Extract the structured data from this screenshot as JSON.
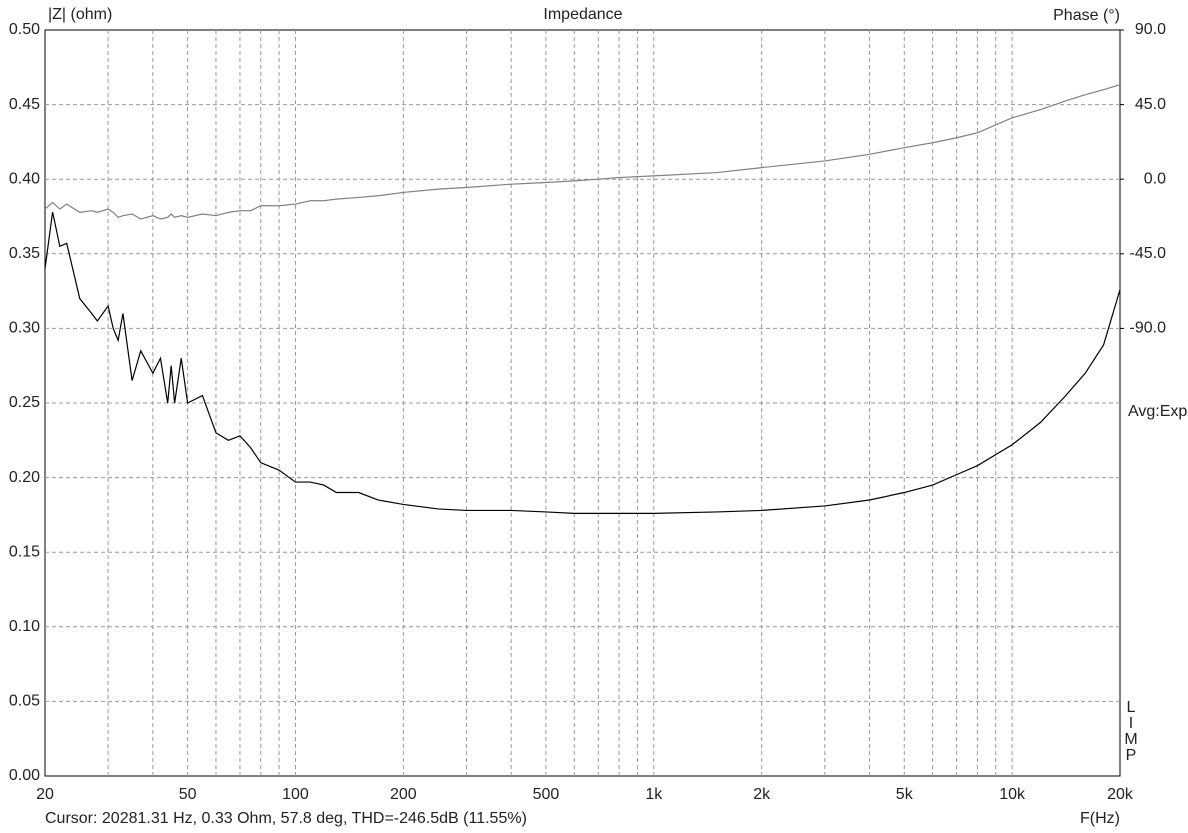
{
  "chart_data": {
    "type": "line",
    "title": "Impedance",
    "y_label": "|Z| (ohm)",
    "y2_label": "Phase (°)",
    "x_label": "F(Hz)",
    "mode_label": "Avg:Exp",
    "program_label": "LIMP",
    "cursor": "Cursor: 20281.31 Hz, 0.33 Ohm, 57.8 deg, THD=-246.5dB (11.55%)",
    "log_x": true,
    "grid": true,
    "xlim": [
      20,
      20000
    ],
    "xticks": [
      20,
      50,
      100,
      200,
      500,
      {
        "value": 1000,
        "label": "1k"
      },
      {
        "value": 2000,
        "label": "2k"
      },
      {
        "value": 5000,
        "label": "5k"
      },
      {
        "value": 10000,
        "label": "10k"
      },
      {
        "value": 20000,
        "label": "20k"
      }
    ],
    "xminorticks": [
      30,
      40,
      60,
      70,
      80,
      90,
      300,
      400,
      600,
      700,
      800,
      900,
      3000,
      4000,
      6000,
      7000,
      8000,
      9000
    ],
    "ylim": [
      0,
      0.5
    ],
    "yticks": [
      {
        "value": 0,
        "label": "0.00"
      },
      {
        "value": 0.05,
        "label": "0.05"
      },
      {
        "value": 0.1,
        "label": "0.10"
      },
      {
        "value": 0.15,
        "label": "0.15"
      },
      {
        "value": 0.2,
        "label": "0.20"
      },
      {
        "value": 0.25,
        "label": "0.25"
      },
      {
        "value": 0.3,
        "label": "0.30"
      },
      {
        "value": 0.35,
        "label": "0.35"
      },
      {
        "value": 0.4,
        "label": "0.40"
      },
      {
        "value": 0.45,
        "label": "0.45"
      },
      {
        "value": 0.5,
        "label": "0.50"
      }
    ],
    "y2lim": [
      -360,
      90
    ],
    "y2ticks": [
      {
        "value": 90,
        "label": "90.0"
      },
      {
        "value": 45,
        "label": "45.0"
      },
      {
        "value": 0,
        "label": "0.0"
      },
      {
        "value": -45,
        "label": "-45.0"
      },
      {
        "value": -90,
        "label": "-90.0"
      }
    ],
    "x": [
      20,
      21,
      22,
      23,
      25,
      27,
      28,
      30,
      31,
      32,
      33,
      35,
      37,
      40,
      42,
      44,
      45,
      46,
      48,
      50,
      55,
      60,
      65,
      70,
      75,
      80,
      90,
      100,
      110,
      120,
      130,
      150,
      170,
      200,
      250,
      300,
      400,
      500,
      600,
      700,
      800,
      1000,
      1500,
      2000,
      3000,
      4000,
      5000,
      6000,
      7000,
      8000,
      10000,
      12000,
      14000,
      16000,
      18000,
      20000
    ],
    "series": [
      {
        "name": "|Z|",
        "color": "#000000",
        "values": [
          0.34,
          0.378,
          0.355,
          0.357,
          0.32,
          0.31,
          0.305,
          0.315,
          0.3,
          0.292,
          0.31,
          0.265,
          0.285,
          0.27,
          0.28,
          0.25,
          0.275,
          0.25,
          0.28,
          0.25,
          0.255,
          0.23,
          0.225,
          0.228,
          0.22,
          0.21,
          0.205,
          0.197,
          0.197,
          0.195,
          0.19,
          0.19,
          0.185,
          0.182,
          0.179,
          0.178,
          0.178,
          0.177,
          0.176,
          0.176,
          0.176,
          0.176,
          0.177,
          0.178,
          0.181,
          0.185,
          0.19,
          0.195,
          0.202,
          0.208,
          0.222,
          0.237,
          0.254,
          0.27,
          0.289,
          0.326
        ]
      },
      {
        "name": "Phase",
        "color": "#808080",
        "axis": "y2",
        "values": [
          -18,
          -14,
          -18,
          -15,
          -20,
          -19,
          -20,
          -18,
          -20,
          -23,
          -22,
          -21,
          -24,
          -22,
          -24,
          -23,
          -21,
          -23,
          -22,
          -23,
          -21,
          -22,
          -20,
          -19,
          -19,
          -16,
          -16,
          -15,
          -13,
          -13,
          -12,
          -11,
          -10,
          -8,
          -6,
          -5,
          -3,
          -2,
          -1,
          0,
          1,
          2,
          4,
          7,
          11,
          15,
          19,
          22,
          25,
          28,
          37,
          42,
          47,
          51,
          54,
          57
        ]
      }
    ]
  }
}
